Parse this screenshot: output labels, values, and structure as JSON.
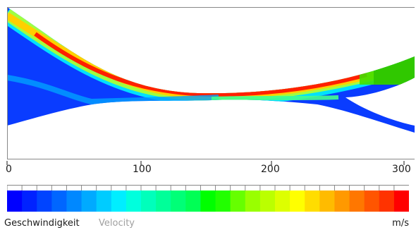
{
  "scale": {
    "ticks": [
      {
        "value": 0,
        "label": "0"
      },
      {
        "value": 100,
        "label": "100"
      },
      {
        "value": 200,
        "label": "200"
      },
      {
        "value": 300,
        "label": "300"
      }
    ],
    "max": 300
  },
  "legend": {
    "title_de": "Geschwindigkeit",
    "title_en": "Velocity",
    "unit": "m/s",
    "colors": [
      "#0000ff",
      "#0022ff",
      "#0044ff",
      "#0066ff",
      "#0088ff",
      "#00aaff",
      "#00ccff",
      "#00eeff",
      "#00ffdd",
      "#00ffbb",
      "#00ff99",
      "#00ff77",
      "#00ff55",
      "#00ff00",
      "#22ff00",
      "#66ff00",
      "#99ff00",
      "#bbff00",
      "#ddff00",
      "#ffff00",
      "#ffdd00",
      "#ffbb00",
      "#ff9900",
      "#ff7700",
      "#ff5500",
      "#ff3300",
      "#ff0000"
    ]
  },
  "colors": {
    "frame": "#888888",
    "text": "#1a1a1a",
    "subtitle": "#a0a0a0"
  }
}
